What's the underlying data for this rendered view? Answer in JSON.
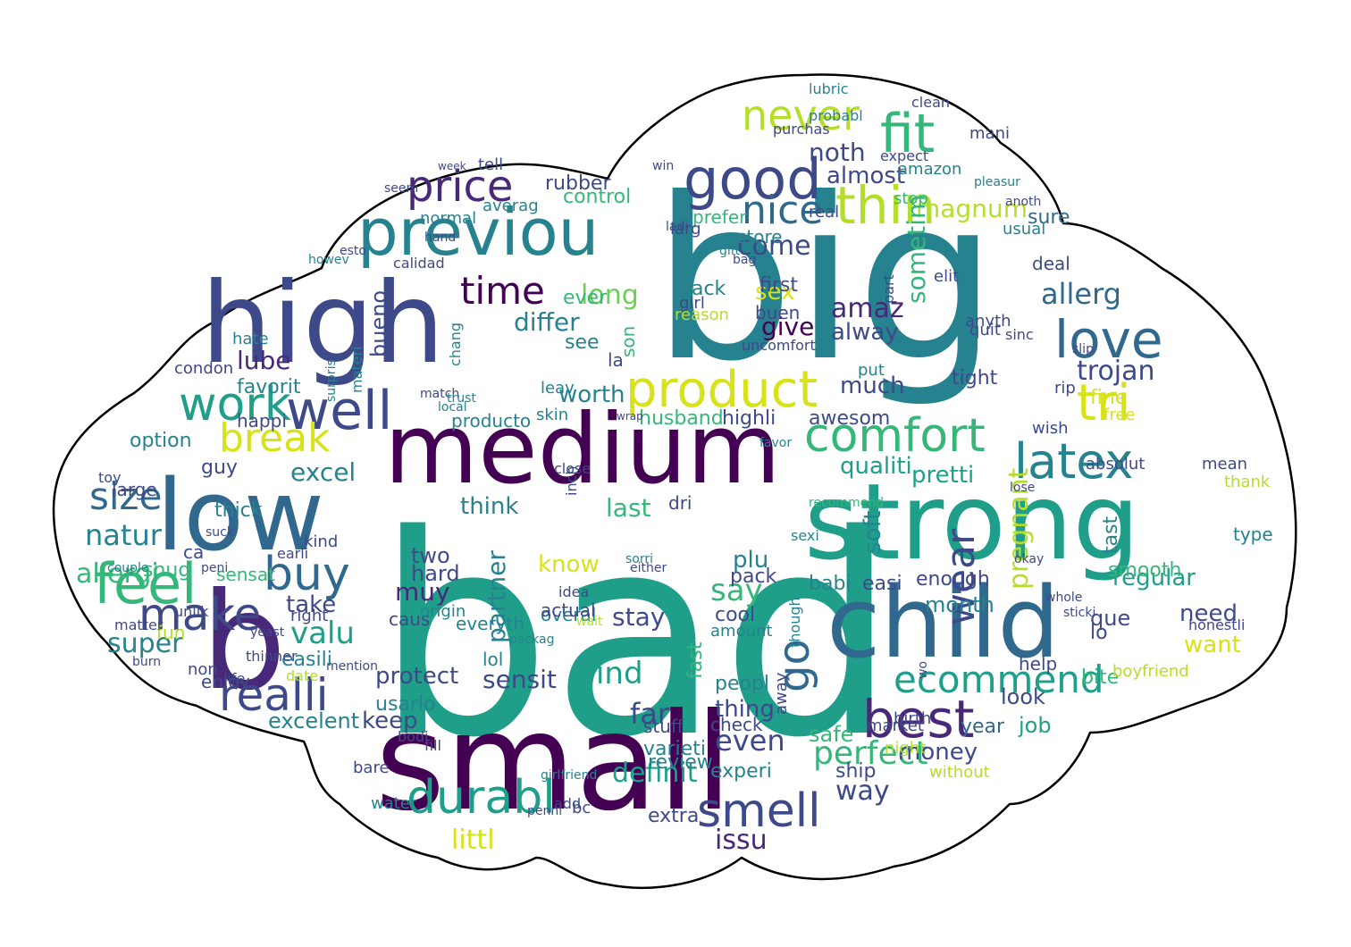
{
  "palette": [
    "#440154",
    "#482878",
    "#3e4989",
    "#31688e",
    "#26828e",
    "#1f9e89",
    "#35b779",
    "#6ece58",
    "#b5de2b",
    "#fde725"
  ],
  "words": [
    {
      "text": "bad",
      "color": "#1f9e89"
    },
    {
      "text": "big",
      "color": "#26828e"
    },
    {
      "text": "small",
      "color": "#440154"
    },
    {
      "text": "medium",
      "color": "#440154"
    },
    {
      "text": "high",
      "color": "#3e4989"
    },
    {
      "text": "strong",
      "color": "#1f9e89"
    },
    {
      "text": "child",
      "color": "#31688e"
    },
    {
      "text": "low",
      "color": "#31688e"
    },
    {
      "text": "b",
      "color": "#482878"
    },
    {
      "text": "previou",
      "color": "#26828e"
    },
    {
      "text": "good",
      "color": "#3e4989"
    },
    {
      "text": "product",
      "color": "#d8e219"
    },
    {
      "text": "comfort",
      "color": "#35b779"
    },
    {
      "text": "thin",
      "color": "#b5de2b"
    },
    {
      "text": "fit",
      "color": "#35b779"
    },
    {
      "text": "work",
      "color": "#1f9e89"
    },
    {
      "text": "well",
      "color": "#3e4989"
    },
    {
      "text": "love",
      "color": "#31688e"
    },
    {
      "text": "best",
      "color": "#482878"
    },
    {
      "text": "latex",
      "color": "#26828e"
    },
    {
      "text": "tri",
      "color": "#d8e219"
    },
    {
      "text": "durabl",
      "color": "#1f9e89"
    },
    {
      "text": "smell",
      "color": "#3e4989"
    },
    {
      "text": "never",
      "color": "#b5de2b"
    },
    {
      "text": "price",
      "color": "#482878"
    },
    {
      "text": "nice",
      "color": "#31688e"
    },
    {
      "text": "feel",
      "color": "#35b779"
    },
    {
      "text": "buy",
      "color": "#31688e"
    },
    {
      "text": "make",
      "color": "#3e4989"
    },
    {
      "text": "realli",
      "color": "#3e4989"
    },
    {
      "text": "size",
      "color": "#31688e"
    },
    {
      "text": "break",
      "color": "#d8e219"
    },
    {
      "text": "time",
      "color": "#440154"
    },
    {
      "text": "ecommend",
      "color": "#1f9e89"
    },
    {
      "text": "go",
      "color": "#31688e"
    },
    {
      "text": "wear",
      "color": "#3e4989"
    },
    {
      "text": "perfect",
      "color": "#35b779"
    },
    {
      "text": "amaz",
      "color": "#482878"
    },
    {
      "text": "trojan",
      "color": "#3e4989"
    },
    {
      "text": "allerg",
      "color": "#31688e"
    },
    {
      "text": "come",
      "color": "#3e4989"
    },
    {
      "text": "noth",
      "color": "#3e4989"
    },
    {
      "text": "almost",
      "color": "#3e4989"
    },
    {
      "text": "sensit",
      "color": "#3e4989"
    },
    {
      "text": "protect",
      "color": "#3e4989"
    },
    {
      "text": "find",
      "color": "#1f9e89"
    },
    {
      "text": "say",
      "color": "#35b779"
    },
    {
      "text": "stay",
      "color": "#3e4989"
    },
    {
      "text": "even",
      "color": "#3e4989"
    },
    {
      "text": "money",
      "color": "#3e4989"
    },
    {
      "text": "far",
      "color": "#3e4989"
    },
    {
      "text": "littl",
      "color": "#d8e219"
    },
    {
      "text": "definit",
      "color": "#1f9e89"
    },
    {
      "text": "issu",
      "color": "#482878"
    },
    {
      "text": "way",
      "color": "#3e4989"
    },
    {
      "text": "valu",
      "color": "#1f9e89"
    },
    {
      "text": "lube",
      "color": "#482878"
    },
    {
      "text": "natur",
      "color": "#26828e"
    },
    {
      "text": "allergi",
      "color": "#35b779"
    },
    {
      "text": "super",
      "color": "#26828e"
    },
    {
      "text": "excel",
      "color": "#26828e"
    },
    {
      "text": "magnum",
      "color": "#b5de2b"
    },
    {
      "text": "sex",
      "color": "#d8e219"
    },
    {
      "text": "give",
      "color": "#440154"
    },
    {
      "text": "alway",
      "color": "#3e4989"
    },
    {
      "text": "much",
      "color": "#3e4989"
    },
    {
      "text": "worth",
      "color": "#26828e"
    },
    {
      "text": "long",
      "color": "#6ece58"
    },
    {
      "text": "differ",
      "color": "#26828e"
    },
    {
      "text": "partner",
      "color": "#26828e"
    },
    {
      "text": "need",
      "color": "#3e4989"
    },
    {
      "text": "want",
      "color": "#d8e219"
    },
    {
      "text": "qualiti",
      "color": "#1f9e89"
    },
    {
      "text": "pretti",
      "color": "#1f9e89"
    },
    {
      "text": "excelent",
      "color": "#26828e"
    },
    {
      "text": "keep",
      "color": "#3e4989"
    },
    {
      "text": "take",
      "color": "#3e4989"
    },
    {
      "text": "know",
      "color": "#d8e219"
    },
    {
      "text": "think",
      "color": "#26828e"
    },
    {
      "text": "last",
      "color": "#35b779"
    },
    {
      "text": "regular",
      "color": "#1f9e89"
    },
    {
      "text": "enough",
      "color": "#3e4989"
    },
    {
      "text": "sure",
      "color": "#31688e"
    },
    {
      "text": "first",
      "color": "#3e4989"
    },
    {
      "text": "awesom",
      "color": "#3e4989"
    },
    {
      "text": "safe",
      "color": "#35b779"
    },
    {
      "text": "thing",
      "color": "#3e4989"
    },
    {
      "text": "job",
      "color": "#1f9e89"
    },
    {
      "text": "bite",
      "color": "#35b779"
    },
    {
      "text": "pregnant",
      "color": "#b5de2b"
    },
    {
      "text": "muy",
      "color": "#482878"
    },
    {
      "text": "experi",
      "color": "#26828e"
    },
    {
      "text": "ever",
      "color": "#35b779"
    },
    {
      "text": "usual",
      "color": "#26828e"
    },
    {
      "text": "husband",
      "color": "#35b779"
    },
    {
      "text": "highli",
      "color": "#3e4989"
    },
    {
      "text": "lubric",
      "color": "#26828e"
    },
    {
      "text": "control",
      "color": "#35b779"
    },
    {
      "text": "rubber",
      "color": "#3e4989"
    },
    {
      "text": "put",
      "color": "#26828e"
    },
    {
      "text": "sometim",
      "color": "#35b779"
    },
    {
      "text": "tight",
      "color": "#3e4989"
    },
    {
      "text": "fine",
      "color": "#d8e219"
    },
    {
      "text": "free",
      "color": "#d8e219"
    },
    {
      "text": "hard",
      "color": "#3e4989"
    },
    {
      "text": "look",
      "color": "#3e4989"
    },
    {
      "text": "anyth",
      "color": "#3e4989"
    },
    {
      "text": "year",
      "color": "#31688e"
    },
    {
      "text": "cool",
      "color": "#3e4989"
    },
    {
      "text": "back",
      "color": "#26828e"
    },
    {
      "text": "buen",
      "color": "#3e4989"
    },
    {
      "text": "bueno",
      "color": "#3e4989"
    },
    {
      "text": "favorit",
      "color": "#26828e"
    },
    {
      "text": "happi",
      "color": "#3e4989"
    },
    {
      "text": "option",
      "color": "#26828e"
    },
    {
      "text": "guy",
      "color": "#3e4989"
    },
    {
      "text": "large",
      "color": "#3e4989"
    },
    {
      "text": "thick",
      "color": "#26828e"
    },
    {
      "text": "fun",
      "color": "#b5de2b"
    },
    {
      "text": "ca",
      "color": "#3e4989"
    },
    {
      "text": "sensat",
      "color": "#35b779"
    },
    {
      "text": "snug",
      "color": "#35b779"
    },
    {
      "text": "easili",
      "color": "#26828e"
    },
    {
      "text": "enjoy",
      "color": "#3e4989"
    },
    {
      "text": "usarlo",
      "color": "#26828e"
    },
    {
      "text": "varieti",
      "color": "#26828e"
    },
    {
      "text": "stuff",
      "color": "#3e4989"
    },
    {
      "text": "peopl",
      "color": "#26828e"
    },
    {
      "text": "check",
      "color": "#3e4989"
    },
    {
      "text": "review",
      "color": "#26828e"
    },
    {
      "text": "extra",
      "color": "#3e4989"
    },
    {
      "text": "ship",
      "color": "#3e4989"
    },
    {
      "text": "without",
      "color": "#b5de2b"
    },
    {
      "text": "market",
      "color": "#3e4989"
    },
    {
      "text": "night",
      "color": "#b5de2b"
    },
    {
      "text": "month",
      "color": "#26828e"
    },
    {
      "text": "que",
      "color": "#3e4989"
    },
    {
      "text": "lo",
      "color": "#3e4989"
    },
    {
      "text": "help",
      "color": "#3e4989"
    },
    {
      "text": "tast",
      "color": "#26828e"
    },
    {
      "text": "smooth",
      "color": "#35b779"
    },
    {
      "text": "plu",
      "color": "#26828e"
    },
    {
      "text": "pack",
      "color": "#3e4989"
    },
    {
      "text": "soft",
      "color": "#26828e"
    },
    {
      "text": "babi",
      "color": "#26828e"
    },
    {
      "text": "easi",
      "color": "#3e4989"
    },
    {
      "text": "two",
      "color": "#3e4989"
    },
    {
      "text": "caus",
      "color": "#3e4989"
    },
    {
      "text": "everyth",
      "color": "#26828e"
    },
    {
      "text": "overal",
      "color": "#26828e"
    },
    {
      "text": "actual",
      "color": "#3e4989"
    },
    {
      "text": "fast",
      "color": "#35b779"
    },
    {
      "text": "lol",
      "color": "#26828e"
    },
    {
      "text": "dri",
      "color": "#3e4989"
    },
    {
      "text": "producto",
      "color": "#26828e"
    },
    {
      "text": "skin",
      "color": "#26828e"
    },
    {
      "text": "see",
      "color": "#26828e"
    },
    {
      "text": "la",
      "color": "#3e4989"
    },
    {
      "text": "son",
      "color": "#35b779"
    },
    {
      "text": "averag",
      "color": "#26828e"
    },
    {
      "text": "normal",
      "color": "#26828e"
    },
    {
      "text": "tell",
      "color": "#3e4989"
    },
    {
      "text": "prefer",
      "color": "#35b779"
    },
    {
      "text": "larg",
      "color": "#3e4989"
    },
    {
      "text": "store",
      "color": "#26828e"
    },
    {
      "text": "real",
      "color": "#3e4989"
    },
    {
      "text": "amazon",
      "color": "#26828e"
    },
    {
      "text": "stop",
      "color": "#35b779"
    },
    {
      "text": "deal",
      "color": "#3e4989"
    },
    {
      "text": "rip",
      "color": "#3e4989"
    },
    {
      "text": "wish",
      "color": "#3e4989"
    },
    {
      "text": "type",
      "color": "#26828e"
    },
    {
      "text": "mean",
      "color": "#3e4989"
    },
    {
      "text": "thank",
      "color": "#b5de2b"
    },
    {
      "text": "quit",
      "color": "#3e4989"
    },
    {
      "text": "sinc",
      "color": "#3e4989"
    },
    {
      "text": "elit",
      "color": "#3e4989"
    },
    {
      "text": "part",
      "color": "#3e4989"
    },
    {
      "text": "purchas",
      "color": "#3e4989"
    },
    {
      "text": "probabl",
      "color": "#26828e"
    },
    {
      "text": "hate",
      "color": "#26828e"
    },
    {
      "text": "condon",
      "color": "#3e4989"
    },
    {
      "text": "toy",
      "color": "#3e4989"
    },
    {
      "text": "absolut",
      "color": "#3e4989"
    },
    {
      "text": "boyfriend",
      "color": "#b5de2b"
    },
    {
      "text": "calidad",
      "color": "#3e4989"
    },
    {
      "text": "mani",
      "color": "#3e4989"
    },
    {
      "text": "leav",
      "color": "#26828e"
    },
    {
      "text": "girl",
      "color": "#3e4989"
    },
    {
      "text": "reason",
      "color": "#b5de2b"
    },
    {
      "text": "away",
      "color": "#3e4989"
    },
    {
      "text": "though",
      "color": "#26828e"
    },
    {
      "text": "amount",
      "color": "#26828e"
    },
    {
      "text": "birth",
      "color": "#3e4989"
    },
    {
      "text": "either",
      "color": "#3e4989"
    },
    {
      "text": "inch",
      "color": "#3e4989"
    },
    {
      "text": "close",
      "color": "#3e4989"
    },
    {
      "text": "idea",
      "color": "#3e4989"
    },
    {
      "text": "origin",
      "color": "#26828e"
    },
    {
      "text": "bare",
      "color": "#3e4989"
    },
    {
      "text": "non",
      "color": "#3e4989"
    },
    {
      "text": "right",
      "color": "#3e4989"
    },
    {
      "text": "kind",
      "color": "#3e4989"
    },
    {
      "text": "thinner",
      "color": "#3e4989"
    },
    {
      "text": "wo",
      "color": "#3e4989"
    },
    {
      "text": "recommend",
      "color": "#35b779"
    },
    {
      "text": "gift",
      "color": "#26828e"
    },
    {
      "text": "uncomfort",
      "color": "#3e4989"
    },
    {
      "text": "ladi",
      "color": "#3e4989"
    },
    {
      "text": "favor",
      "color": "#26828e"
    },
    {
      "text": "sexi",
      "color": "#26828e"
    },
    {
      "text": "expect",
      "color": "#3e4989"
    },
    {
      "text": "wrap",
      "color": "#3e4989"
    },
    {
      "text": "sorri",
      "color": "#26828e"
    },
    {
      "text": "bag",
      "color": "#3e4989"
    },
    {
      "text": "clean",
      "color": "#3e4989"
    },
    {
      "text": "pleasur",
      "color": "#26828e"
    },
    {
      "text": "anoth",
      "color": "#3e4989"
    },
    {
      "text": "girlfriend",
      "color": "#26828e"
    },
    {
      "text": "bc",
      "color": "#3e4989"
    },
    {
      "text": "win",
      "color": "#3e4989"
    },
    {
      "text": "fill",
      "color": "#3e4989"
    },
    {
      "text": "water",
      "color": "#26828e"
    },
    {
      "text": "life",
      "color": "#3e4989"
    },
    {
      "text": "penni",
      "color": "#3e4989"
    },
    {
      "text": "add",
      "color": "#3e4989"
    },
    {
      "text": "seem",
      "color": "#3e4989"
    },
    {
      "text": "couple",
      "color": "#26828e"
    },
    {
      "text": "matter",
      "color": "#3e4989"
    },
    {
      "text": "burn",
      "color": "#3e4989"
    },
    {
      "text": "mention",
      "color": "#3e4989"
    },
    {
      "text": "date",
      "color": "#b5de2b"
    },
    {
      "text": "yeast",
      "color": "#3e4989"
    },
    {
      "text": "earli",
      "color": "#3e4989"
    },
    {
      "text": "unlik",
      "color": "#3e4989"
    },
    {
      "text": "peni",
      "color": "#3e4989"
    },
    {
      "text": "suck",
      "color": "#3e4989"
    },
    {
      "text": "bodi",
      "color": "#3e4989"
    },
    {
      "text": "surpris",
      "color": "#26828e"
    },
    {
      "text": "materi",
      "color": "#26828e"
    },
    {
      "text": "howev",
      "color": "#26828e"
    },
    {
      "text": "esto",
      "color": "#3e4989"
    },
    {
      "text": "hand",
      "color": "#3e4989"
    },
    {
      "text": "week",
      "color": "#3e4989"
    },
    {
      "text": "match",
      "color": "#3e4989"
    },
    {
      "text": "local",
      "color": "#26828e"
    },
    {
      "text": "trust",
      "color": "#26828e"
    },
    {
      "text": "chang",
      "color": "#26828e"
    },
    {
      "text": "packag",
      "color": "#26828e"
    },
    {
      "text": "wait",
      "color": "#b5de2b"
    },
    {
      "text": "slip",
      "color": "#3e4989"
    },
    {
      "text": "honestli",
      "color": "#3e4989"
    },
    {
      "text": "sticki",
      "color": "#3e4989"
    },
    {
      "text": "whole",
      "color": "#3e4989"
    },
    {
      "text": "okay",
      "color": "#3e4989"
    },
    {
      "text": "lose",
      "color": "#3e4989"
    },
    {
      "text": "effecti",
      "color": "#3e4989"
    }
  ]
}
